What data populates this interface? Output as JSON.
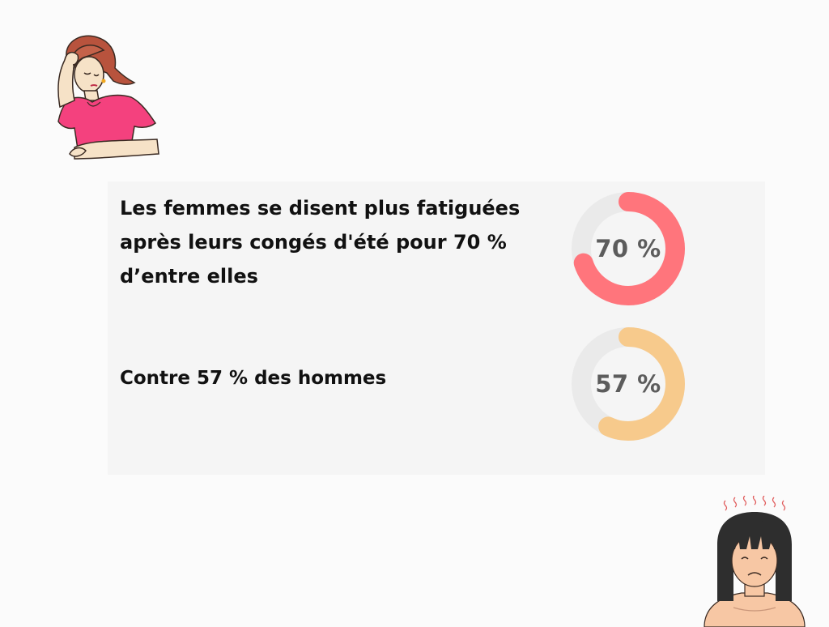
{
  "chart_data": {
    "type": "pie",
    "unit": "%",
    "series": [
      {
        "text": "Les femmes se disent plus fatiguées après leurs congés d'été pour 70 % d’entre elles",
        "value": 70,
        "label": "70 %",
        "color": "#ff757c"
      },
      {
        "text": "Contre 57 % des hommes",
        "value": 57,
        "label": "57 %",
        "color": "#f7ca8c"
      }
    ],
    "track_color": "#eaeaea"
  }
}
